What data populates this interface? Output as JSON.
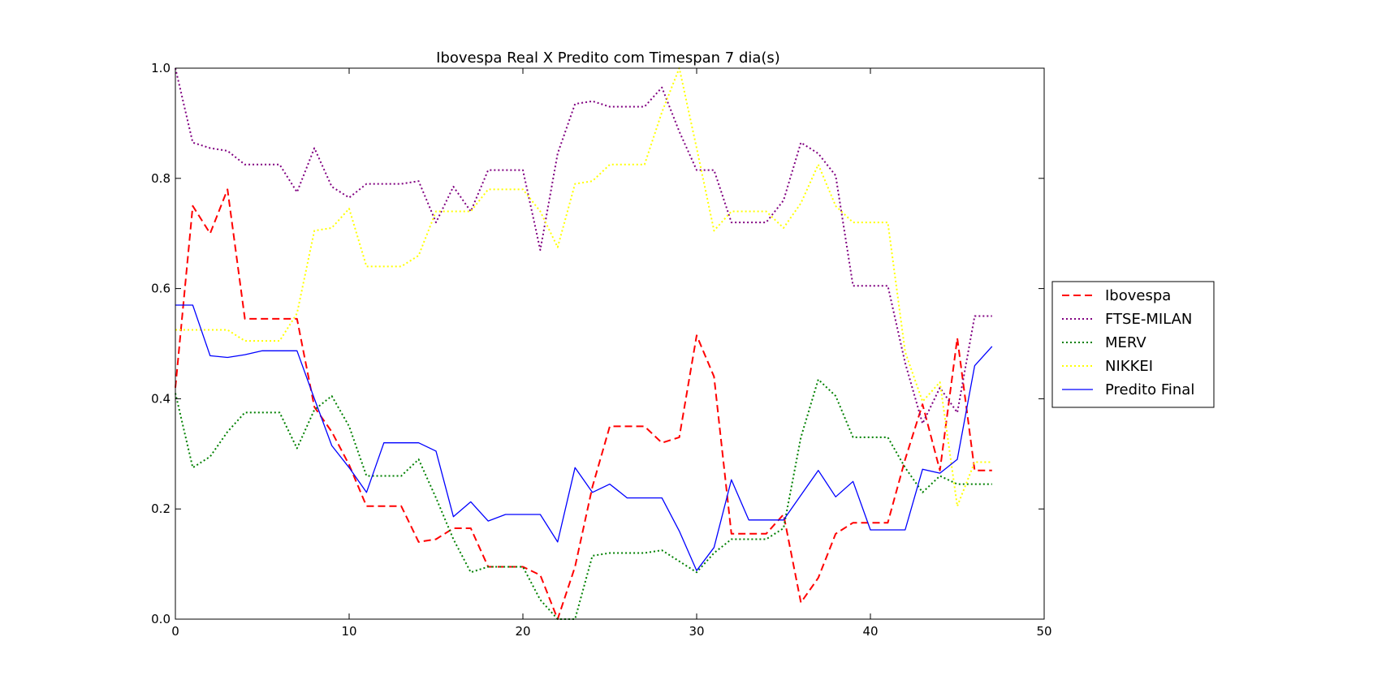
{
  "chart_data": {
    "type": "line",
    "title": "Ibovespa Real X Predito com Timespan 7 dia(s)",
    "xlabel": "",
    "ylabel": "",
    "xlim": [
      0,
      50
    ],
    "ylim": [
      0,
      1.0
    ],
    "xticks": [
      0,
      10,
      20,
      30,
      40,
      50
    ],
    "xtick_labels": [
      "0",
      "10",
      "20",
      "30",
      "40",
      "50"
    ],
    "yticks": [
      0,
      0.2,
      0.4,
      0.6,
      0.8,
      1.0
    ],
    "ytick_labels": [
      "0.0",
      "0.2",
      "0.4",
      "0.6",
      "0.8",
      "1.0"
    ],
    "grid": false,
    "legend_position": "outside-right",
    "x": [
      0,
      1,
      2,
      3,
      4,
      5,
      6,
      7,
      8,
      9,
      10,
      11,
      12,
      13,
      14,
      15,
      16,
      17,
      18,
      19,
      20,
      21,
      22,
      23,
      24,
      25,
      26,
      27,
      28,
      29,
      30,
      31,
      32,
      33,
      34,
      35,
      36,
      37,
      38,
      39,
      40,
      41,
      42,
      43,
      44,
      45,
      46,
      47
    ],
    "series": [
      {
        "name": "Ibovespa",
        "color": "#ff0000",
        "style": "dashed",
        "values": [
          0.42,
          0.75,
          0.7,
          0.78,
          0.545,
          0.545,
          0.545,
          0.545,
          0.385,
          0.34,
          0.28,
          0.205,
          0.205,
          0.205,
          0.14,
          0.145,
          0.165,
          0.165,
          0.095,
          0.095,
          0.095,
          0.08,
          0.0,
          0.095,
          0.24,
          0.35,
          0.35,
          0.35,
          0.32,
          0.33,
          0.515,
          0.44,
          0.155,
          0.155,
          0.155,
          0.19,
          0.03,
          0.075,
          0.155,
          0.175,
          0.175,
          0.175,
          0.29,
          0.39,
          0.27,
          0.51,
          0.27,
          0.27
        ]
      },
      {
        "name": "FTSE-MILAN",
        "color": "#800080",
        "style": "dotted",
        "values": [
          1.0,
          0.865,
          0.855,
          0.85,
          0.825,
          0.825,
          0.825,
          0.775,
          0.855,
          0.785,
          0.765,
          0.79,
          0.79,
          0.79,
          0.795,
          0.72,
          0.785,
          0.74,
          0.815,
          0.815,
          0.815,
          0.67,
          0.845,
          0.935,
          0.94,
          0.93,
          0.93,
          0.93,
          0.965,
          0.885,
          0.815,
          0.815,
          0.72,
          0.72,
          0.72,
          0.76,
          0.865,
          0.845,
          0.805,
          0.605,
          0.605,
          0.605,
          0.465,
          0.355,
          0.42,
          0.375,
          0.55,
          0.55
        ]
      },
      {
        "name": "MERV",
        "color": "#008000",
        "style": "dotted",
        "values": [
          0.41,
          0.275,
          0.295,
          0.34,
          0.375,
          0.375,
          0.375,
          0.31,
          0.38,
          0.405,
          0.35,
          0.26,
          0.26,
          0.26,
          0.29,
          0.22,
          0.145,
          0.085,
          0.095,
          0.095,
          0.095,
          0.035,
          0.0,
          0.0,
          0.115,
          0.12,
          0.12,
          0.12,
          0.125,
          0.105,
          0.085,
          0.12,
          0.145,
          0.145,
          0.145,
          0.165,
          0.33,
          0.435,
          0.405,
          0.33,
          0.33,
          0.33,
          0.275,
          0.23,
          0.26,
          0.245,
          0.245,
          0.245
        ]
      },
      {
        "name": "NIKKEI",
        "color": "#ffff00",
        "style": "dotted",
        "values": [
          0.525,
          0.525,
          0.525,
          0.525,
          0.505,
          0.505,
          0.505,
          0.555,
          0.705,
          0.71,
          0.745,
          0.64,
          0.64,
          0.64,
          0.66,
          0.74,
          0.74,
          0.74,
          0.78,
          0.78,
          0.78,
          0.74,
          0.675,
          0.79,
          0.795,
          0.825,
          0.825,
          0.825,
          0.92,
          1.0,
          0.855,
          0.705,
          0.74,
          0.74,
          0.74,
          0.71,
          0.755,
          0.825,
          0.75,
          0.72,
          0.72,
          0.72,
          0.485,
          0.395,
          0.43,
          0.205,
          0.285,
          0.285
        ]
      },
      {
        "name": "Predito Final",
        "color": "#0000ff",
        "style": "solid",
        "values": [
          0.57,
          0.57,
          0.478,
          0.475,
          0.48,
          0.487,
          0.487,
          0.487,
          0.4,
          0.315,
          0.275,
          0.23,
          0.32,
          0.32,
          0.32,
          0.305,
          0.186,
          0.213,
          0.178,
          0.19,
          0.19,
          0.19,
          0.14,
          0.275,
          0.23,
          0.245,
          0.22,
          0.22,
          0.22,
          0.16,
          0.088,
          0.13,
          0.253,
          0.18,
          0.18,
          0.18,
          0.225,
          0.27,
          0.222,
          0.25,
          0.162,
          0.162,
          0.162,
          0.272,
          0.265,
          0.29,
          0.46,
          0.495
        ]
      }
    ]
  }
}
